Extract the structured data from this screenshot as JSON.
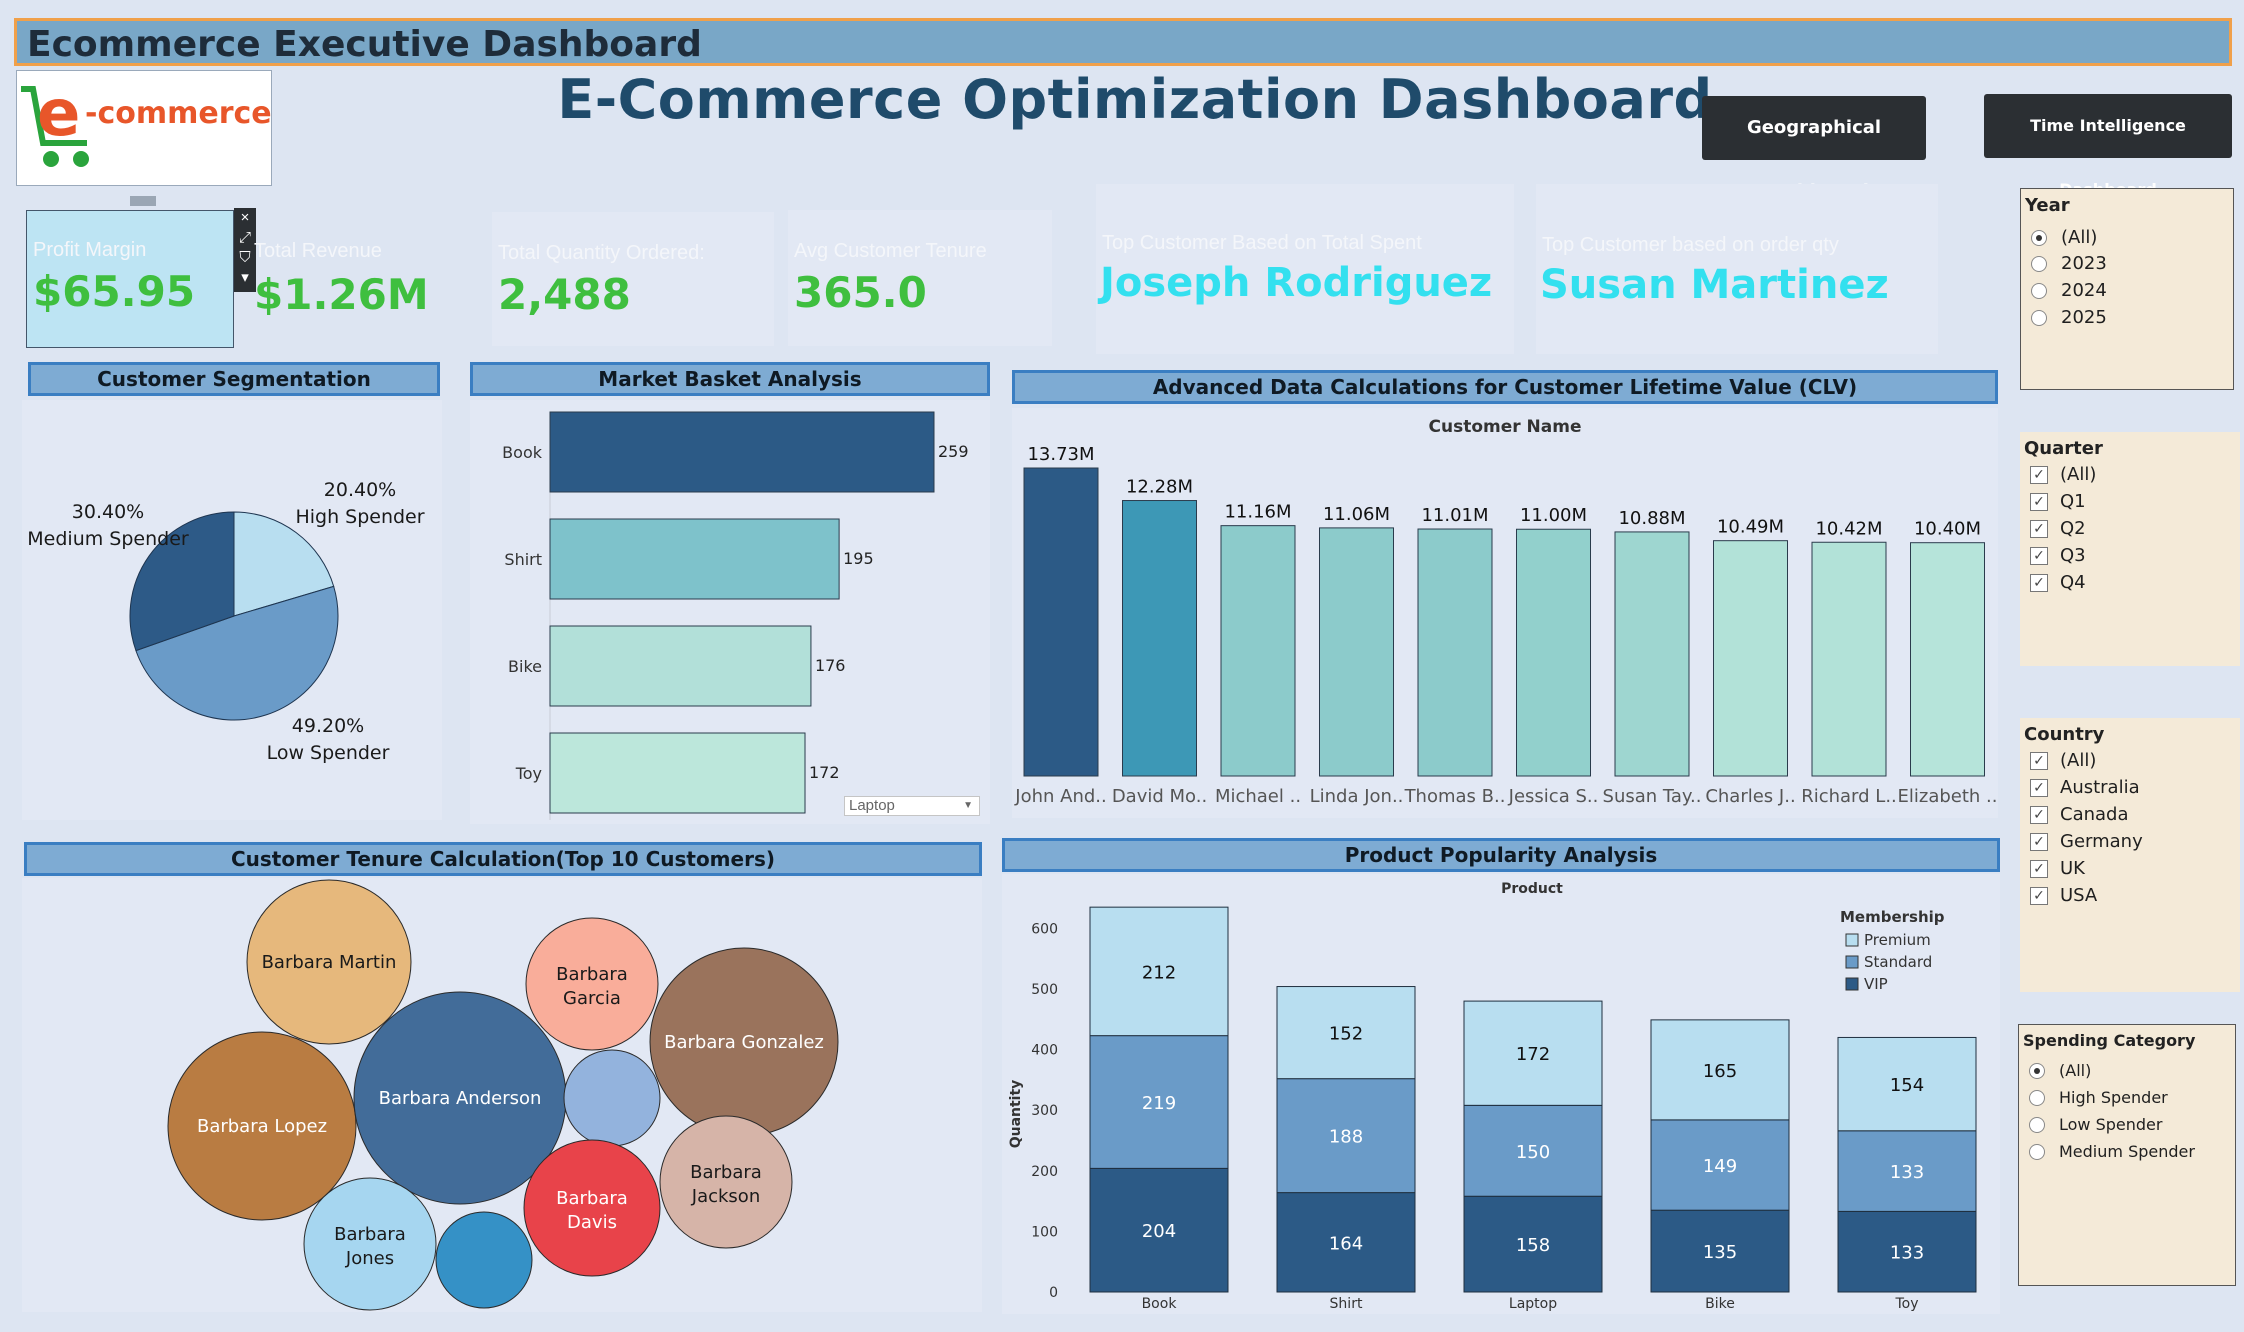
{
  "header": {
    "title": "Ecommerce Executive Dashboard"
  },
  "logo": {
    "text_e": "e",
    "text_rest": "-commerce",
    "icon": "shopping-cart-icon"
  },
  "main_title": "E-Commerce Optimization Dashboard",
  "nav": {
    "geo_label": "Geographical Dashboard",
    "time_label": "Time Intelligence Dashboard"
  },
  "kpis": {
    "profit_label": "Profit Margin",
    "profit_value": "$65.95",
    "revenue_label": "Total Revenue",
    "revenue_value": "$1.26M",
    "qty_label": "Total Quantity Ordered:",
    "qty_value": "2,488",
    "tenure_label": "Avg Customer Tenure",
    "tenure_value": "365.0",
    "top_spent_label": "Top Customer Based on Total Spent",
    "top_spent_value": "Joseph Rodriguez",
    "top_qty_label": "Top Customer based on order qty",
    "top_qty_value": "Susan Martinez"
  },
  "kpi_tools": [
    "×",
    "⤢",
    "⛉",
    "▾"
  ],
  "sections": {
    "segmentation": "Customer Segmentation",
    "basket": "Market Basket Analysis",
    "clv": "Advanced Data Calculations for Customer Lifetime Value (CLV)",
    "tenure": "Customer Tenure Calculation(Top 10 Customers)",
    "popularity": "Product Popularity Analysis"
  },
  "chart_data": [
    {
      "type": "pie",
      "name": "Customer Segmentation",
      "slices": [
        {
          "label": "High Spender",
          "pct": 20.4,
          "color": "#b8def0"
        },
        {
          "label": "Low Spender",
          "pct": 49.2,
          "color": "#6a9bc8"
        },
        {
          "label": "Medium Spender",
          "pct": 30.4,
          "color": "#2d5a87"
        }
      ]
    },
    {
      "type": "bar",
      "orientation": "horizontal",
      "name": "Market Basket Analysis",
      "categories": [
        "Book",
        "Shirt",
        "Bike",
        "Toy"
      ],
      "values": [
        259,
        195,
        176,
        172
      ],
      "colors": [
        "#2c5a86",
        "#7ec2cb",
        "#b2e0d9",
        "#bce7db"
      ],
      "dropdown": "Laptop"
    },
    {
      "type": "bar",
      "name": "Advanced Data Calculations for Customer Lifetime Value (CLV)",
      "title": "Customer Name",
      "categories": [
        "John And..",
        "David Mo..",
        "Michael ..",
        "Linda Jon..",
        "Thomas B..",
        "Jessica S..",
        "Susan Tay..",
        "Charles J..",
        "Richard L..",
        "Elizabeth .."
      ],
      "values": [
        13.73,
        12.28,
        11.16,
        11.06,
        11.01,
        11.0,
        10.88,
        10.49,
        10.42,
        10.4
      ],
      "labels": [
        "13.73M",
        "12.28M",
        "11.16M",
        "11.06M",
        "11.01M",
        "11.00M",
        "10.88M",
        "10.49M",
        "10.42M",
        "10.40M"
      ],
      "colors": [
        "#2c5a86",
        "#3d98b6",
        "#8ccbcb",
        "#8ccbcb",
        "#8ccbcb",
        "#92d0cc",
        "#9ed6d0",
        "#b2e2d8",
        "#b2e2d8",
        "#b6e4da"
      ],
      "unit": "M"
    },
    {
      "type": "bubble",
      "name": "Customer Tenure Calculation(Top 10 Customers)",
      "bubbles": [
        {
          "label": "Barbara Martin",
          "color": "#e6b87c"
        },
        {
          "label": "Barbara Garcia",
          "color": "#f9ad9a"
        },
        {
          "label": "Barbara Gonzalez",
          "color": "#9a735c"
        },
        {
          "label": "Barbara Lopez",
          "color": "#b97c42"
        },
        {
          "label": "Barbara Anderson",
          "color": "#426c99"
        },
        {
          "label": "",
          "color": "#93b3dd"
        },
        {
          "label": "Barbara Jackson",
          "color": "#d6b4a8"
        },
        {
          "label": "Barbara Davis",
          "color": "#e8434a"
        },
        {
          "label": "Barbara Jones",
          "color": "#a6d6f0"
        },
        {
          "label": "",
          "color": "#3591c6"
        }
      ]
    },
    {
      "type": "stacked_bar",
      "name": "Product Popularity Analysis",
      "title": "Product",
      "ylabel": "Quantity",
      "categories": [
        "Book",
        "Shirt",
        "Laptop",
        "Bike",
        "Toy"
      ],
      "ylim": [
        0,
        660
      ],
      "yticks": [
        0,
        100,
        200,
        300,
        400,
        500,
        600
      ],
      "legend_title": "Membership",
      "series": [
        {
          "name": "VIP",
          "values": [
            204,
            164,
            158,
            135,
            133
          ],
          "color": "#2c5a86"
        },
        {
          "name": "Standard",
          "values": [
            219,
            188,
            150,
            149,
            133
          ],
          "color": "#6a9bc8"
        },
        {
          "name": "Premium",
          "values": [
            212,
            152,
            172,
            165,
            154
          ],
          "color": "#b8def0"
        }
      ]
    }
  ],
  "filters": {
    "year": {
      "title": "Year",
      "options": [
        "(All)",
        "2023",
        "2024",
        "2025"
      ],
      "selected": "(All)"
    },
    "quarter": {
      "title": "Quarter",
      "options": [
        "(All)",
        "Q1",
        "Q2",
        "Q3",
        "Q4"
      ]
    },
    "country": {
      "title": "Country",
      "options": [
        "(All)",
        "Australia",
        "Canada",
        "Germany",
        "UK",
        "USA"
      ]
    },
    "spending": {
      "title": "Spending Category",
      "options": [
        "(All)",
        "High Spender",
        "Low Spender",
        "Medium Spender"
      ],
      "selected": "(All)"
    }
  }
}
